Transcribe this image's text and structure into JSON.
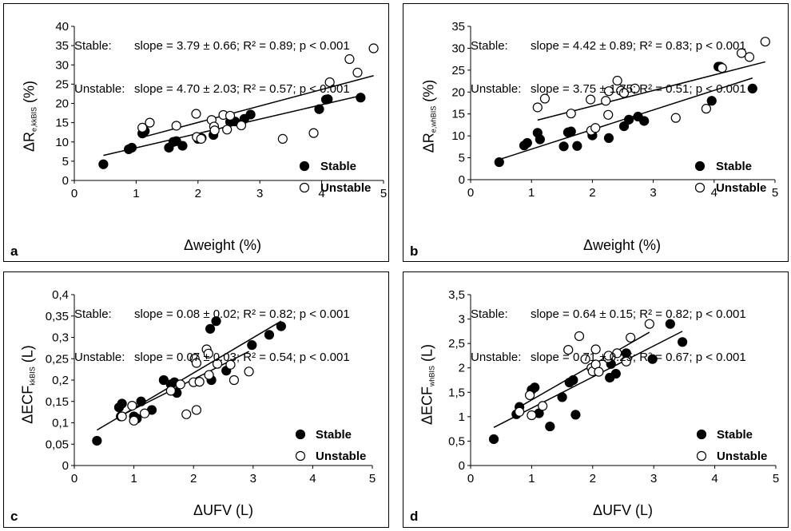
{
  "colors": {
    "stable": "#000000",
    "unstable": "#ffffff",
    "line": "#000000"
  },
  "chart_data": [
    {
      "id": "a",
      "type": "scatter",
      "panel_letter": "a",
      "xlabel": "Δweight (%)",
      "ylabel_main": "ΔR",
      "ylabel_sub": "e,kkBIS",
      "ylabel_unit": " (%)",
      "xlim": [
        0,
        5
      ],
      "ylim": [
        0,
        40
      ],
      "xticks": [
        "0",
        "1",
        "2",
        "3",
        "4",
        "5"
      ],
      "yticks": [
        "0",
        "5",
        "10",
        "15",
        "20",
        "25",
        "30",
        "35",
        "40"
      ],
      "stats_stable_label": "Stable:",
      "stats_stable": "slope = 3.79 ± 0.66; R² = 0.89; p < 0.001",
      "stats_unstable_label": "Unstable:",
      "stats_unstable": "slope = 4.70 ± 2.03; R² = 0.57; p < 0.001",
      "legend": [
        "Stable",
        "Unstable"
      ],
      "series": [
        {
          "name": "Stable",
          "fill": "filled",
          "points": [
            [
              0.47,
              4.2
            ],
            [
              0.88,
              8.1
            ],
            [
              0.93,
              8.5
            ],
            [
              1.1,
              12.2
            ],
            [
              1.14,
              12.8
            ],
            [
              1.53,
              8.5
            ],
            [
              1.6,
              10.0
            ],
            [
              1.65,
              10.2
            ],
            [
              1.75,
              9.0
            ],
            [
              2.0,
              10.8
            ],
            [
              2.06,
              11.0
            ],
            [
              2.25,
              11.8
            ],
            [
              2.52,
              15.2
            ],
            [
              2.6,
              15.3
            ],
            [
              2.75,
              16.0
            ],
            [
              2.85,
              17.1
            ],
            [
              3.96,
              18.5
            ],
            [
              4.07,
              21.0
            ],
            [
              4.1,
              21.1
            ],
            [
              4.63,
              21.5
            ]
          ],
          "fit": [
            [
              0.47,
              6.5
            ],
            [
              4.63,
              22.0
            ]
          ]
        },
        {
          "name": "Unstable",
          "fill": "open",
          "points": [
            [
              1.1,
              13.7
            ],
            [
              1.22,
              15.0
            ],
            [
              1.65,
              14.2
            ],
            [
              1.97,
              17.3
            ],
            [
              1.98,
              11.3
            ],
            [
              2.05,
              10.8
            ],
            [
              2.22,
              15.7
            ],
            [
              2.26,
              14.0
            ],
            [
              2.27,
              13.0
            ],
            [
              2.41,
              17.0
            ],
            [
              2.47,
              13.2
            ],
            [
              2.52,
              16.8
            ],
            [
              2.7,
              14.3
            ],
            [
              3.37,
              10.8
            ],
            [
              3.87,
              12.3
            ],
            [
              4.13,
              25.5
            ],
            [
              4.45,
              31.5
            ],
            [
              4.58,
              28.0
            ],
            [
              4.84,
              34.3
            ]
          ],
          "fit": [
            [
              1.1,
              11.2
            ],
            [
              4.84,
              27.2
            ]
          ]
        }
      ]
    },
    {
      "id": "b",
      "type": "scatter",
      "panel_letter": "b",
      "xlabel": "Δweight (%)",
      "ylabel_main": "ΔR",
      "ylabel_sub": "e,whBIS",
      "ylabel_unit": " (%)",
      "xlim": [
        0,
        5
      ],
      "ylim": [
        0,
        35
      ],
      "xticks": [
        "0",
        "1",
        "2",
        "3",
        "4",
        "5"
      ],
      "yticks": [
        "0",
        "5",
        "10",
        "15",
        "20",
        "25",
        "30",
        "35"
      ],
      "stats_stable_label": "Stable:",
      "stats_stable": "slope = 4.42 ± 0.89; R² = 0.83; p < 0.001",
      "stats_unstable_label": "Unstable:",
      "stats_unstable": "slope = 3.75 ± 1.75; R² = 0.51; p < 0.001",
      "legend": [
        "Stable",
        "Unstable"
      ],
      "series": [
        {
          "name": "Stable",
          "fill": "filled",
          "points": [
            [
              0.47,
              4.0
            ],
            [
              0.88,
              7.8
            ],
            [
              0.93,
              8.4
            ],
            [
              1.1,
              10.7
            ],
            [
              1.14,
              9.2
            ],
            [
              1.53,
              7.6
            ],
            [
              1.6,
              10.8
            ],
            [
              1.65,
              11.0
            ],
            [
              1.75,
              7.7
            ],
            [
              2.0,
              10.1
            ],
            [
              2.27,
              9.5
            ],
            [
              2.52,
              12.2
            ],
            [
              2.6,
              13.7
            ],
            [
              2.75,
              14.4
            ],
            [
              2.85,
              13.4
            ],
            [
              3.96,
              18.0
            ],
            [
              4.07,
              25.8
            ],
            [
              4.1,
              25.8
            ],
            [
              4.63,
              20.8
            ]
          ],
          "fit": [
            [
              0.47,
              4.6
            ],
            [
              4.63,
              23.2
            ]
          ]
        },
        {
          "name": "Unstable",
          "fill": "open",
          "points": [
            [
              1.1,
              16.5
            ],
            [
              1.22,
              18.5
            ],
            [
              1.65,
              15.1
            ],
            [
              1.97,
              18.3
            ],
            [
              1.98,
              11.2
            ],
            [
              2.05,
              11.8
            ],
            [
              2.22,
              18.0
            ],
            [
              2.26,
              14.8
            ],
            [
              2.27,
              20.2
            ],
            [
              2.41,
              22.6
            ],
            [
              2.47,
              20.3
            ],
            [
              2.52,
              19.8
            ],
            [
              2.7,
              20.8
            ],
            [
              3.37,
              14.1
            ],
            [
              3.87,
              16.2
            ],
            [
              4.13,
              25.5
            ],
            [
              4.45,
              28.9
            ],
            [
              4.58,
              28.0
            ],
            [
              4.84,
              31.5
            ]
          ],
          "fit": [
            [
              1.1,
              13.6
            ],
            [
              4.84,
              26.9
            ]
          ]
        }
      ]
    },
    {
      "id": "c",
      "type": "scatter",
      "panel_letter": "c",
      "xlabel": "ΔUFV (L)",
      "ylabel_main": "ΔECF",
      "ylabel_sub": "kkBIS",
      "ylabel_unit": " (L)",
      "xlim": [
        0,
        5
      ],
      "ylim": [
        0,
        0.4
      ],
      "xticks": [
        "0",
        "1",
        "2",
        "3",
        "4",
        "5"
      ],
      "yticks": [
        "0",
        "0,05",
        "0,1",
        "0,15",
        "0,2",
        "0,25",
        "0,3",
        "0,35",
        "0,4"
      ],
      "stats_stable_label": "Stable:",
      "stats_stable": "slope = 0.08 ± 0.02; R² = 0.82; p < 0.001",
      "stats_unstable_label": "Unstable:",
      "stats_unstable": "slope = 0.07 ± 0.03; R² = 0.54; p < 0.001",
      "legend": [
        "Stable",
        "Unstable"
      ],
      "series": [
        {
          "name": "Stable",
          "fill": "filled",
          "points": [
            [
              0.38,
              0.058
            ],
            [
              0.75,
              0.136
            ],
            [
              0.78,
              0.115
            ],
            [
              0.8,
              0.145
            ],
            [
              1.0,
              0.115
            ],
            [
              1.05,
              0.11
            ],
            [
              1.12,
              0.15
            ],
            [
              1.3,
              0.13
            ],
            [
              1.5,
              0.2
            ],
            [
              1.62,
              0.19
            ],
            [
              1.68,
              0.195
            ],
            [
              1.72,
              0.17
            ],
            [
              2.28,
              0.32
            ],
            [
              2.38,
              0.338
            ],
            [
              2.3,
              0.2
            ],
            [
              2.55,
              0.222
            ],
            [
              2.98,
              0.282
            ],
            [
              3.27,
              0.306
            ],
            [
              3.47,
              0.326
            ]
          ],
          "fit": [
            [
              0.38,
              0.083
            ],
            [
              3.47,
              0.338
            ]
          ]
        },
        {
          "name": "Unstable",
          "fill": "open",
          "points": [
            [
              0.8,
              0.115
            ],
            [
              0.97,
              0.14
            ],
            [
              1.0,
              0.105
            ],
            [
              1.18,
              0.122
            ],
            [
              1.62,
              0.175
            ],
            [
              1.78,
              0.19
            ],
            [
              1.88,
              0.12
            ],
            [
              2.0,
              0.195
            ],
            [
              2.02,
              0.25
            ],
            [
              2.05,
              0.13
            ],
            [
              2.05,
              0.24
            ],
            [
              2.1,
              0.196
            ],
            [
              2.22,
              0.272
            ],
            [
              2.25,
              0.262
            ],
            [
              2.26,
              0.212
            ],
            [
              2.4,
              0.238
            ],
            [
              2.62,
              0.236
            ],
            [
              2.68,
              0.2
            ],
            [
              2.93,
              0.22
            ]
          ],
          "fit": [
            [
              0.8,
              0.118
            ],
            [
              2.93,
              0.267
            ]
          ]
        }
      ]
    },
    {
      "id": "d",
      "type": "scatter",
      "panel_letter": "d",
      "xlabel": "ΔUFV (L)",
      "ylabel_main": "ΔECF",
      "ylabel_sub": "whBIS",
      "ylabel_unit": " (L)",
      "xlim": [
        0,
        5
      ],
      "ylim": [
        0,
        3.5
      ],
      "xticks": [
        "0",
        "1",
        "2",
        "3",
        "4",
        "5"
      ],
      "yticks": [
        "0",
        "0,5",
        "1",
        "1,5",
        "2",
        "2,5",
        "3",
        "3,5"
      ],
      "stats_stable_label": "Stable:",
      "stats_stable": "slope = 0.64 ± 0.15; R² = 0.82; p < 0.001",
      "stats_unstable_label": "Unstable:",
      "stats_unstable": "slope = 0.71 ± 0.25; R² = 0.67; p < 0.001",
      "legend": [
        "Stable",
        "Unstable"
      ],
      "series": [
        {
          "name": "Stable",
          "fill": "filled",
          "points": [
            [
              0.38,
              0.54
            ],
            [
              0.75,
              1.05
            ],
            [
              0.8,
              1.2
            ],
            [
              1.0,
              1.55
            ],
            [
              1.05,
              1.6
            ],
            [
              1.12,
              1.07
            ],
            [
              1.3,
              0.8
            ],
            [
              1.5,
              1.4
            ],
            [
              1.62,
              1.7
            ],
            [
              1.68,
              1.75
            ],
            [
              1.72,
              1.04
            ],
            [
              2.28,
              1.8
            ],
            [
              2.3,
              2.08
            ],
            [
              2.38,
              1.88
            ],
            [
              2.55,
              2.3
            ],
            [
              2.98,
              2.18
            ],
            [
              3.27,
              2.9
            ],
            [
              3.47,
              2.53
            ]
          ],
          "fit": [
            [
              0.38,
              0.78
            ],
            [
              3.47,
              2.75
            ]
          ]
        },
        {
          "name": "Unstable",
          "fill": "open",
          "points": [
            [
              0.8,
              1.1
            ],
            [
              0.97,
              1.44
            ],
            [
              1.0,
              1.03
            ],
            [
              1.18,
              1.22
            ],
            [
              1.6,
              2.37
            ],
            [
              1.78,
              2.65
            ],
            [
              1.88,
              2.18
            ],
            [
              1.98,
              2.0
            ],
            [
              2.0,
              1.93
            ],
            [
              2.05,
              2.38
            ],
            [
              2.05,
              2.07
            ],
            [
              2.1,
              1.92
            ],
            [
              2.25,
              2.2
            ],
            [
              2.26,
              2.25
            ],
            [
              2.4,
              2.3
            ],
            [
              2.55,
              2.13
            ],
            [
              2.62,
              2.62
            ],
            [
              2.93,
              2.9
            ]
          ],
          "fit": [
            [
              0.8,
              1.2
            ],
            [
              2.93,
              2.73
            ]
          ]
        }
      ]
    }
  ]
}
